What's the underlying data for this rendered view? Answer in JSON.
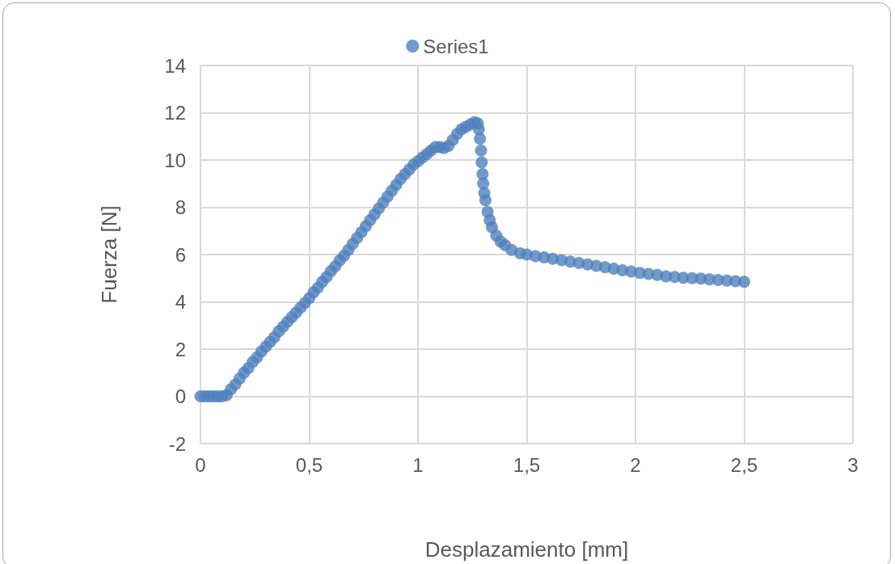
{
  "chart_data": {
    "type": "scatter",
    "xlabel": "Desplazamiento [mm]",
    "ylabel": "Fuerza [N]",
    "xlim": [
      0,
      3
    ],
    "xticks": [
      {
        "value": 0,
        "label": "0"
      },
      {
        "value": 0.5,
        "label": "0,5"
      },
      {
        "value": 1,
        "label": "1"
      },
      {
        "value": 1.5,
        "label": "1,5"
      },
      {
        "value": 2,
        "label": "2"
      },
      {
        "value": 2.5,
        "label": "2,5"
      },
      {
        "value": 3,
        "label": "3"
      }
    ],
    "ylim": [
      -2,
      14
    ],
    "yticks": [
      -2,
      0,
      2,
      4,
      6,
      8,
      10,
      12,
      14
    ],
    "grid": true,
    "legend": "top",
    "marker": "circle",
    "series": [
      {
        "name": "Series1",
        "color": "#4f81bd",
        "x": [
          0,
          0.02,
          0.04,
          0.06,
          0.08,
          0.1,
          0.12,
          0.14,
          0.16,
          0.18,
          0.2,
          0.22,
          0.24,
          0.26,
          0.28,
          0.3,
          0.32,
          0.34,
          0.36,
          0.38,
          0.4,
          0.42,
          0.44,
          0.46,
          0.48,
          0.5,
          0.52,
          0.54,
          0.56,
          0.58,
          0.6,
          0.62,
          0.64,
          0.66,
          0.68,
          0.7,
          0.72,
          0.74,
          0.76,
          0.78,
          0.8,
          0.82,
          0.84,
          0.86,
          0.88,
          0.9,
          0.92,
          0.94,
          0.96,
          0.98,
          1.0,
          1.02,
          1.04,
          1.06,
          1.08,
          1.1,
          1.12,
          1.14,
          1.16,
          1.18,
          1.2,
          1.22,
          1.24,
          1.26,
          1.275,
          1.28,
          1.285,
          1.29,
          1.293,
          1.297,
          1.3,
          1.305,
          1.31,
          1.32,
          1.33,
          1.34,
          1.36,
          1.38,
          1.4,
          1.43,
          1.47,
          1.5,
          1.54,
          1.58,
          1.62,
          1.66,
          1.7,
          1.74,
          1.78,
          1.82,
          1.86,
          1.9,
          1.94,
          1.98,
          2.02,
          2.06,
          2.1,
          2.14,
          2.18,
          2.22,
          2.26,
          2.3,
          2.34,
          2.38,
          2.42,
          2.46,
          2.5
        ],
        "values": [
          0,
          0,
          0,
          0,
          0,
          0,
          0.05,
          0.3,
          0.5,
          0.75,
          1.0,
          1.2,
          1.45,
          1.65,
          1.9,
          2.1,
          2.3,
          2.5,
          2.75,
          2.95,
          3.15,
          3.35,
          3.55,
          3.75,
          3.95,
          4.15,
          4.4,
          4.6,
          4.85,
          5.05,
          5.3,
          5.5,
          5.75,
          5.95,
          6.2,
          6.45,
          6.7,
          6.95,
          7.2,
          7.45,
          7.7,
          7.95,
          8.2,
          8.45,
          8.7,
          8.95,
          9.2,
          9.4,
          9.6,
          9.8,
          9.95,
          10.1,
          10.25,
          10.4,
          10.55,
          10.55,
          10.5,
          10.6,
          10.85,
          11.1,
          11.3,
          11.4,
          11.5,
          11.6,
          11.55,
          11.3,
          10.9,
          10.4,
          9.9,
          9.4,
          9.0,
          8.6,
          8.3,
          7.8,
          7.45,
          7.15,
          6.8,
          6.55,
          6.4,
          6.2,
          6.05,
          6.0,
          5.93,
          5.88,
          5.82,
          5.76,
          5.7,
          5.64,
          5.58,
          5.52,
          5.46,
          5.4,
          5.33,
          5.28,
          5.22,
          5.18,
          5.14,
          5.08,
          5.05,
          5.02,
          5.0,
          4.98,
          4.95,
          4.92,
          4.9,
          4.87,
          4.85
        ]
      }
    ]
  }
}
